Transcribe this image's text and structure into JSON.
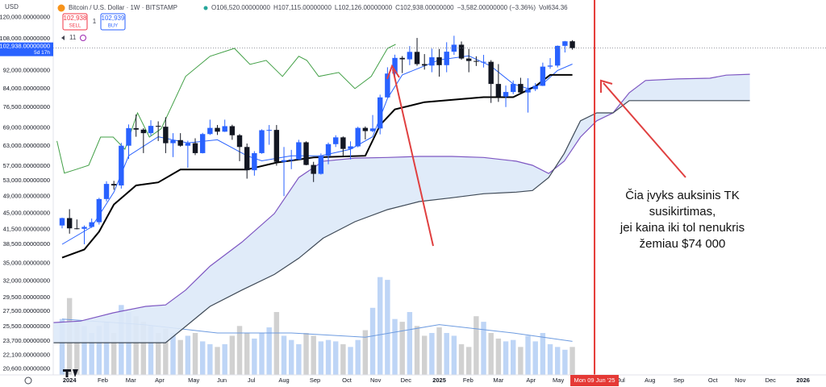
{
  "header": {
    "currency": "USD",
    "symbol": "Bitcoin / U.S. Dollar · 1W · BITSTAMP",
    "ohlc": [
      "O106,520.00000000",
      "H107,115.00000000",
      "L102,126.00000000",
      "C102,938.00000000",
      "−3,582.00000000 (−3.36%)",
      "Vol634.36"
    ],
    "sell": {
      "price": "102,938",
      "label": "SELL"
    },
    "spread": "1",
    "buy": {
      "price": "102,939",
      "label": "BUY"
    },
    "indicators": "11"
  },
  "annotation": [
    "Čia įvyks auksinis TK",
    "susikirtimas,",
    "jei kaina iki tol nenukris",
    "žemiau $74 000"
  ],
  "chart_data": {
    "type": "candlestick",
    "log_scale": true,
    "grid": false,
    "xlim": [
      -2.2,
      102.3
    ],
    "ylim": [
      20000,
      131000
    ],
    "xticks": [
      {
        "value": 0,
        "label": "2024"
      },
      {
        "value": 4.5,
        "label": "Feb"
      },
      {
        "value": 8.3,
        "label": "Mar"
      },
      {
        "value": 12.2,
        "label": "Apr"
      },
      {
        "value": 16.8,
        "label": "May"
      },
      {
        "value": 20.6,
        "label": "Jun"
      },
      {
        "value": 24.6,
        "label": "Jul"
      },
      {
        "value": 29,
        "label": "Aug"
      },
      {
        "value": 33.2,
        "label": "Sep"
      },
      {
        "value": 37.5,
        "label": "Oct"
      },
      {
        "value": 41.4,
        "label": "Nov"
      },
      {
        "value": 45.5,
        "label": "Dec"
      },
      {
        "value": 50,
        "label": "2025"
      },
      {
        "value": 53.9,
        "label": "Feb"
      },
      {
        "value": 58,
        "label": "Mar"
      },
      {
        "value": 62.4,
        "label": "Apr"
      },
      {
        "value": 66.1,
        "label": "May"
      },
      {
        "value": 74.6,
        "label": "Jul"
      },
      {
        "value": 78.5,
        "label": "Aug"
      },
      {
        "value": 82.4,
        "label": "Sep"
      },
      {
        "value": 87,
        "label": "Oct"
      },
      {
        "value": 90.7,
        "label": "Nov"
      },
      {
        "value": 94.8,
        "label": "Dec"
      },
      {
        "value": 99.2,
        "label": "2026"
      }
    ],
    "yticks": [
      {
        "value": 120000,
        "label": "120,000.00000000"
      },
      {
        "value": 108000,
        "label": "108,000.00000000"
      },
      {
        "value": 92000,
        "label": "92,000.00000000"
      },
      {
        "value": 84000,
        "label": "84,000.00000000"
      },
      {
        "value": 76500,
        "label": "76,500.00000000"
      },
      {
        "value": 69000,
        "label": "69,000.00000000"
      },
      {
        "value": 63000,
        "label": "63,000.00000000"
      },
      {
        "value": 57000,
        "label": "57,000.00000000"
      },
      {
        "value": 53000,
        "label": "53,000.00000000"
      },
      {
        "value": 49000,
        "label": "49,000.00000000"
      },
      {
        "value": 45000,
        "label": "45,000.00000000"
      },
      {
        "value": 41500,
        "label": "41,500.00000000"
      },
      {
        "value": 38500,
        "label": "38,500.00000000"
      },
      {
        "value": 35000,
        "label": "35,000.00000000"
      },
      {
        "value": 32000,
        "label": "32,000.00000000"
      },
      {
        "value": 29500,
        "label": "29,500.00000000"
      },
      {
        "value": 27500,
        "label": "27,500.00000000"
      },
      {
        "value": 25500,
        "label": "25,500.00000000"
      },
      {
        "value": 23700,
        "label": "23,700.00000000"
      },
      {
        "value": 22100,
        "label": "22,100.00000000"
      },
      {
        "value": 20600,
        "label": "20,600.00000000"
      }
    ],
    "price_label": {
      "value": 102938,
      "label": "102,938.00000000",
      "countdown": "5d 17h",
      "color": "#2962ff"
    },
    "marker": {
      "x": 71,
      "label": "Mon 09 Jun '25",
      "color": "#e53935"
    },
    "candles": {
      "up_color": "#2962ff",
      "down_color": "#131722",
      "x": [
        -1,
        0,
        1,
        2,
        3,
        4,
        5,
        6,
        7,
        8,
        9,
        10,
        11,
        12,
        13,
        14,
        15,
        16,
        17,
        18,
        19,
        20,
        21,
        22,
        23,
        24,
        25,
        26,
        27,
        28,
        29,
        30,
        31,
        32,
        33,
        34,
        35,
        36,
        37,
        38,
        39,
        40,
        41,
        42,
        43,
        44,
        45,
        46,
        47,
        48,
        49,
        50,
        51,
        52,
        53,
        54,
        55,
        56,
        57,
        58,
        59,
        60,
        61,
        62,
        63,
        64,
        65,
        66,
        67,
        68
      ],
      "open": [
        42300,
        43900,
        41700,
        41600,
        42000,
        43000,
        48300,
        52100,
        51700,
        63100,
        68900,
        68400,
        67200,
        69700,
        69400,
        63900,
        64900,
        63100,
        63900,
        60800,
        66900,
        69000,
        67700,
        69600,
        66500,
        62700,
        55800,
        60800,
        68200,
        68300,
        58200,
        58700,
        58900,
        64200,
        57300,
        54800,
        60000,
        63600,
        65800,
        62100,
        62900,
        69000,
        67900,
        68800,
        80400,
        90600,
        98000,
        97300,
        101000,
        95000,
        94300,
        98300,
        94500,
        101100,
        104700,
        97700,
        96500,
        96100,
        96100,
        86000,
        80700,
        82600,
        86000,
        82400,
        83800,
        85200,
        93800,
        94300,
        104100,
        106520
      ],
      "high": [
        44000,
        45900,
        43600,
        42300,
        43800,
        48600,
        52800,
        52900,
        64000,
        70200,
        73800,
        68900,
        71700,
        71300,
        72800,
        67200,
        67200,
        64700,
        65500,
        67300,
        71900,
        70000,
        71900,
        70100,
        66900,
        63800,
        61400,
        68500,
        70000,
        70000,
        62700,
        61800,
        65000,
        64500,
        58200,
        60700,
        64100,
        66500,
        66100,
        64500,
        69400,
        69500,
        73600,
        81500,
        93500,
        99600,
        98900,
        104000,
        108300,
        99900,
        102700,
        102500,
        106000,
        109500,
        106400,
        102500,
        98800,
        99500,
        96900,
        95000,
        85300,
        87500,
        88700,
        88500,
        86400,
        95700,
        97900,
        104300,
        106700,
        107115
      ],
      "low": [
        41700,
        40600,
        41500,
        38500,
        41800,
        42500,
        47700,
        50600,
        50900,
        59000,
        66000,
        60800,
        66200,
        64600,
        60800,
        59600,
        62800,
        56500,
        60200,
        60700,
        66600,
        66600,
        67600,
        65000,
        58400,
        53500,
        54300,
        60600,
        63400,
        57100,
        49000,
        56100,
        58800,
        57200,
        52600,
        54600,
        57500,
        62700,
        59800,
        58900,
        62600,
        65100,
        67500,
        66800,
        80300,
        87800,
        90800,
        94500,
        94200,
        92400,
        91200,
        89200,
        91200,
        99500,
        97100,
        91200,
        94100,
        93400,
        78200,
        78600,
        76600,
        81700,
        81600,
        74500,
        83000,
        85100,
        92800,
        93400,
        100700,
        102126
      ],
      "close": [
        43900,
        41700,
        41600,
        42000,
        43000,
        48300,
        52100,
        51700,
        63100,
        68900,
        68400,
        67200,
        69700,
        69400,
        63900,
        64900,
        63100,
        63900,
        60800,
        66900,
        69000,
        67700,
        69600,
        66500,
        62700,
        55800,
        60800,
        68200,
        68300,
        58200,
        58700,
        58900,
        64200,
        57300,
        54800,
        60000,
        63600,
        65800,
        62100,
        62900,
        69000,
        67900,
        68800,
        80400,
        90600,
        98000,
        97300,
        101000,
        95000,
        94300,
        98300,
        94500,
        101100,
        104700,
        97700,
        96500,
        96100,
        96100,
        86000,
        80700,
        82600,
        86000,
        82400,
        83800,
        85200,
        93800,
        94300,
        104100,
        106500,
        102938
      ]
    },
    "volume": {
      "vlim": [
        0,
        75
      ],
      "up_color": "#b3cef5",
      "down_color": "#c9c9c9",
      "values": [
        40,
        55,
        38,
        35,
        30,
        35,
        38,
        30,
        50,
        45,
        42,
        38,
        35,
        30,
        33,
        30,
        25,
        28,
        30,
        24,
        22,
        20,
        22,
        28,
        35,
        30,
        26,
        30,
        34,
        45,
        28,
        25,
        22,
        30,
        28,
        24,
        25,
        24,
        22,
        20,
        25,
        32,
        48,
        70,
        68,
        40,
        38,
        45,
        35,
        28,
        30,
        34,
        30,
        28,
        22,
        20,
        42,
        38,
        30,
        26,
        24,
        25,
        20,
        28,
        24,
        30,
        22,
        20,
        18,
        20
      ],
      "ma": {
        "color": "#6d9be0",
        "x": [
          -1,
          10,
          20,
          30,
          40,
          50,
          60,
          68
        ],
        "values": [
          40,
          36,
          30,
          30,
          27,
          36,
          30,
          24
        ]
      }
    },
    "lines": {
      "conversion": {
        "color": "#2962ff",
        "width": 1,
        "x": [
          -1,
          3,
          6,
          8,
          12,
          16,
          20,
          24,
          26,
          30,
          34,
          38,
          41,
          43,
          45,
          50,
          54,
          57,
          60,
          62,
          64,
          66,
          68
        ],
        "values": [
          38500,
          42000,
          50000,
          60000,
          66000,
          64000,
          65000,
          60000,
          58500,
          60000,
          60000,
          62000,
          66000,
          80000,
          90000,
          97000,
          99000,
          94000,
          86000,
          84000,
          86000,
          92000,
          95000
        ]
      },
      "base": {
        "color": "#000000",
        "width": 2,
        "x": [
          -1,
          2,
          4,
          6,
          9,
          12,
          15,
          24,
          28,
          33,
          40,
          42,
          44,
          48,
          56,
          60,
          63,
          65,
          68
        ],
        "values": [
          36000,
          37500,
          41000,
          47000,
          51700,
          52500,
          56000,
          56000,
          58000,
          59500,
          60000,
          70000,
          75700,
          78500,
          80500,
          80500,
          85000,
          90000,
          90000
        ]
      },
      "lagging": {
        "color": "#43a047",
        "width": 1,
        "x": [
          -1.7,
          -0.7,
          1,
          2.6,
          4.2,
          5.9,
          7.5,
          9.2,
          10.8,
          12.4,
          15.7,
          19,
          22.3,
          24.4,
          26.6,
          28.8,
          31,
          32.1,
          33.7,
          36.4,
          38.6,
          40.8,
          43,
          44.1
        ],
        "values": [
          64600,
          55000,
          56100,
          57200,
          65900,
          65900,
          62000,
          74400,
          65900,
          68700,
          89300,
          98800,
          102800,
          94900,
          96800,
          89300,
          98800,
          96800,
          89300,
          91100,
          84000,
          89300,
          102800,
          104900
        ]
      }
    },
    "cloud": {
      "fill": "#dde9f8",
      "x": [
        -2.2,
        1.5,
        5.9,
        10.3,
        13,
        15.7,
        19,
        23.3,
        27.7,
        31,
        34.3,
        38.6,
        43,
        47.3,
        51.7,
        56,
        60.4,
        62.6,
        64.8,
        66.9,
        69.1,
        71.3,
        73.5,
        75.7,
        77.9,
        82.2,
        86.6,
        88.8,
        92
      ],
      "span_a": {
        "color": "#7e57c2",
        "values": [
          26000,
          26200,
          27300,
          28200,
          28400,
          30600,
          34500,
          38900,
          44900,
          53800,
          58400,
          59300,
          59500,
          59800,
          59800,
          59500,
          58400,
          57200,
          54900,
          58400,
          65900,
          71500,
          74400,
          82300,
          87500,
          88200,
          88500,
          89900,
          90300
        ]
      },
      "span_b": {
        "color": "#3f4a57",
        "values": [
          23500,
          23500,
          23500,
          23500,
          23500,
          25500,
          28200,
          30600,
          33100,
          35900,
          39700,
          43100,
          45800,
          47700,
          48600,
          49600,
          50000,
          50400,
          53800,
          60700,
          71500,
          74400,
          74400,
          79100,
          79100,
          79100,
          79100,
          79100,
          79100
        ]
      }
    }
  }
}
